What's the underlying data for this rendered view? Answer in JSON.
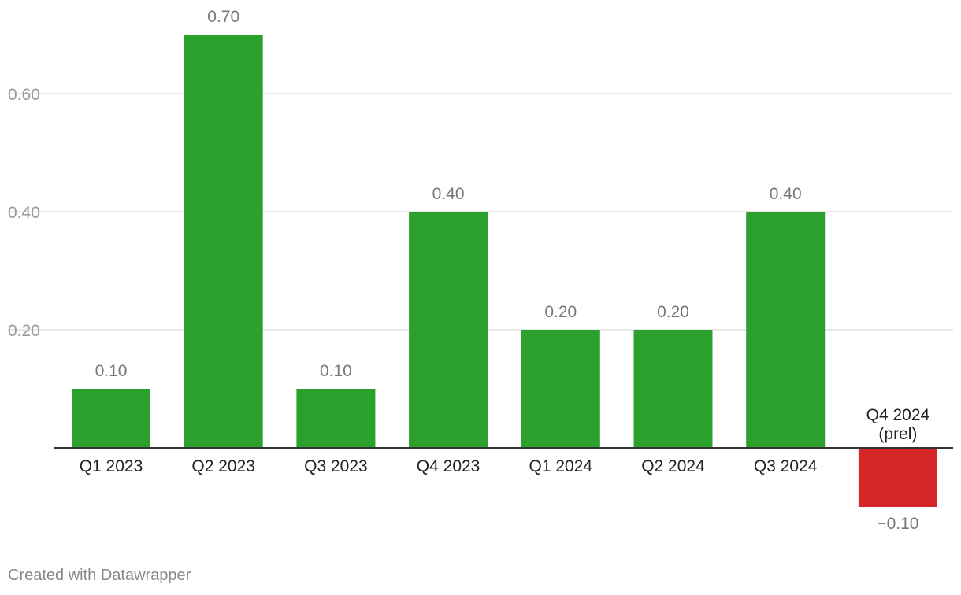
{
  "chart_data": {
    "type": "bar",
    "categories": [
      "Q1 2023",
      "Q2 2023",
      "Q3 2023",
      "Q4 2023",
      "Q1 2024",
      "Q2 2024",
      "Q3 2024",
      "Q4 2024 (prel)"
    ],
    "values": [
      0.1,
      0.7,
      0.1,
      0.4,
      0.2,
      0.2,
      0.4,
      -0.1
    ],
    "value_labels": [
      "0.10",
      "0.70",
      "0.10",
      "0.40",
      "0.20",
      "0.20",
      "0.40",
      "−0.10"
    ],
    "category_labels": [
      [
        "Q1 2023"
      ],
      [
        "Q2 2023"
      ],
      [
        "Q3 2023"
      ],
      [
        "Q4 2023"
      ],
      [
        "Q1 2024"
      ],
      [
        "Q2 2024"
      ],
      [
        "Q3 2024"
      ],
      [
        "Q4 2024",
        "(prel)"
      ]
    ],
    "y_ticks": [
      0.2,
      0.4,
      0.6
    ],
    "y_tick_labels": [
      "0.20",
      "0.40",
      "0.60"
    ],
    "ylim": [
      -0.1,
      0.7
    ],
    "grid": true,
    "colors": {
      "positive": "#2ca02c",
      "negative": "#d62728",
      "grid": "#e0e0e0",
      "axis": "#333333",
      "tick_text": "#999999",
      "value_text": "#777777",
      "category_text": "#222222"
    }
  },
  "footer": {
    "credit": "Created with Datawrapper"
  }
}
